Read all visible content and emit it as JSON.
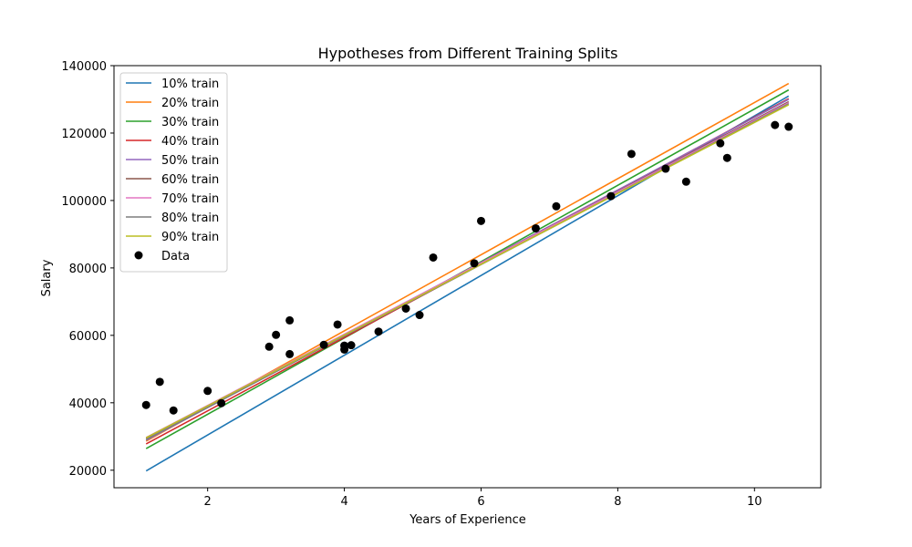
{
  "chart_data": {
    "type": "line",
    "title": "Hypotheses from Different Training Splits",
    "xlabel": "Years of Experience",
    "ylabel": "Salary",
    "xlim": [
      0.63,
      10.97
    ],
    "ylim": [
      14800,
      140000
    ],
    "xticks": [
      2,
      4,
      6,
      8,
      10
    ],
    "yticks": [
      20000,
      40000,
      60000,
      80000,
      100000,
      120000,
      140000
    ],
    "grid": false,
    "legend_position": "upper-left",
    "series": [
      {
        "name": "10% train",
        "color": "#1f77b4",
        "x": [
          1.1,
          10.5
        ],
        "y": [
          19800,
          131000
        ]
      },
      {
        "name": "20% train",
        "color": "#ff7f0e",
        "x": [
          1.1,
          10.5
        ],
        "y": [
          28600,
          134700
        ]
      },
      {
        "name": "30% train",
        "color": "#2ca02c",
        "x": [
          1.1,
          10.5
        ],
        "y": [
          26400,
          132800
        ]
      },
      {
        "name": "40% train",
        "color": "#d62728",
        "x": [
          1.1,
          10.5
        ],
        "y": [
          27800,
          130200
        ]
      },
      {
        "name": "50% train",
        "color": "#9467bd",
        "x": [
          1.1,
          10.5
        ],
        "y": [
          28900,
          130000
        ]
      },
      {
        "name": "60% train",
        "color": "#8c564b",
        "x": [
          1.1,
          10.5
        ],
        "y": [
          29400,
          129300
        ]
      },
      {
        "name": "70% train",
        "color": "#e377c2",
        "x": [
          1.1,
          10.5
        ],
        "y": [
          29700,
          129000
        ]
      },
      {
        "name": "80% train",
        "color": "#7f7f7f",
        "x": [
          1.1,
          10.5
        ],
        "y": [
          29100,
          128700
        ]
      },
      {
        "name": "90% train",
        "color": "#bcbd22",
        "x": [
          1.1,
          10.5
        ],
        "y": [
          29600,
          128400
        ]
      }
    ],
    "scatter": {
      "name": "Data",
      "color": "#000000",
      "points": [
        [
          1.1,
          39343
        ],
        [
          1.3,
          46205
        ],
        [
          1.5,
          37731
        ],
        [
          2.0,
          43525
        ],
        [
          2.2,
          39891
        ],
        [
          2.9,
          56642
        ],
        [
          3.0,
          60150
        ],
        [
          3.2,
          54445
        ],
        [
          3.2,
          64445
        ],
        [
          3.7,
          57189
        ],
        [
          3.9,
          63218
        ],
        [
          4.0,
          55794
        ],
        [
          4.0,
          56957
        ],
        [
          4.1,
          57081
        ],
        [
          4.5,
          61111
        ],
        [
          4.9,
          67938
        ],
        [
          5.1,
          66029
        ],
        [
          5.3,
          83088
        ],
        [
          5.9,
          81363
        ],
        [
          6.0,
          93940
        ],
        [
          6.8,
          91738
        ],
        [
          7.1,
          98273
        ],
        [
          7.9,
          101302
        ],
        [
          8.2,
          113812
        ],
        [
          8.7,
          109431
        ],
        [
          9.0,
          105582
        ],
        [
          9.5,
          116969
        ],
        [
          9.6,
          112635
        ],
        [
          10.3,
          122391
        ],
        [
          10.5,
          121872
        ]
      ]
    }
  }
}
